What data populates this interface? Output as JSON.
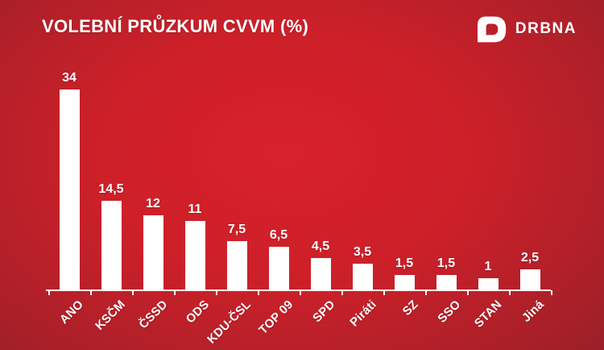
{
  "title": "VOLEBNÍ PRŮZKUM CVVM (%)",
  "logo": {
    "text": "DRBNA",
    "icon": "drbna-d-speech-bubble-icon"
  },
  "colors": {
    "background_center": "#d8212c",
    "background_edge": "#8b1d25",
    "bar": "#ffffff",
    "text": "#ffffff"
  },
  "chart_data": {
    "type": "bar",
    "title": "VOLEBNÍ PRŮZKUM CVVM (%)",
    "unit": "%",
    "categories": [
      "ANO",
      "KSČM",
      "ČSSD",
      "ODS",
      "KDU-ČSL",
      "TOP 09",
      "SPD",
      "Piráti",
      "SZ",
      "SSO",
      "STAN",
      "Jiná"
    ],
    "values": [
      34,
      14.5,
      12,
      11,
      7.5,
      6.5,
      4.5,
      3.5,
      1.5,
      1.5,
      1,
      2.5
    ],
    "value_labels": [
      "34",
      "14,5",
      "12",
      "11",
      "7,5",
      "6,5",
      "4,5",
      "3,5",
      "1,5",
      "1,5",
      "1",
      "2,5"
    ],
    "xlabel": "",
    "ylabel": "",
    "ylim": [
      0,
      36
    ],
    "grid": false,
    "legend": false,
    "bar_color": "#ffffff",
    "label_rotation_deg": -45
  }
}
